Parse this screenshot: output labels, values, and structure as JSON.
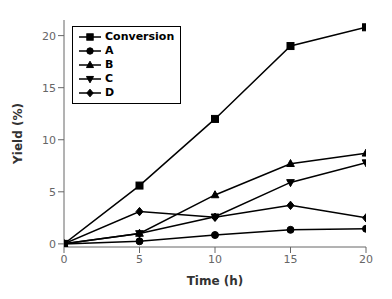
{
  "chart_data": {
    "type": "line",
    "x": [
      0,
      5,
      10,
      15,
      20
    ],
    "series": [
      {
        "name": "Conversion",
        "color": "#000000",
        "marker": "square",
        "values": [
          0,
          5.6,
          12.0,
          19.0,
          20.8
        ]
      },
      {
        "name": "A",
        "color": "#000000",
        "marker": "circle",
        "values": [
          0,
          0.25,
          0.85,
          1.35,
          1.45
        ]
      },
      {
        "name": "B",
        "color": "#000000",
        "marker": "triangle-up",
        "values": [
          0,
          1.0,
          4.7,
          7.7,
          8.7
        ]
      },
      {
        "name": "C",
        "color": "#000000",
        "marker": "triangle-down",
        "values": [
          0,
          1.0,
          2.6,
          5.9,
          7.8
        ]
      },
      {
        "name": "D",
        "color": "#000000",
        "marker": "diamond",
        "values": [
          0,
          3.1,
          2.55,
          3.7,
          2.5
        ]
      }
    ],
    "xlabel": "Time (h)",
    "ylabel": "Yield (%)",
    "xlim": [
      0,
      20
    ],
    "ylim": [
      -0.3,
      21.5
    ],
    "xticks": [
      0,
      5,
      10,
      15,
      20
    ],
    "yticks": [
      0,
      5,
      10,
      15,
      20
    ],
    "legend": "upper left",
    "grid": false
  }
}
